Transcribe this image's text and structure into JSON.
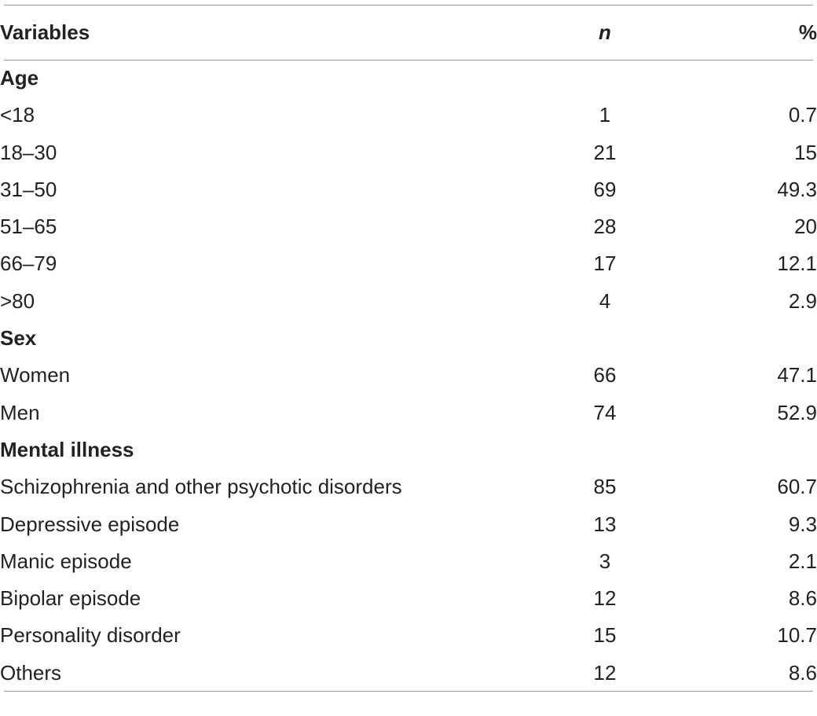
{
  "table": {
    "headers": {
      "variables": "Variables",
      "n": "n",
      "percent": "%"
    },
    "sections": [
      {
        "title": "Age",
        "rows": [
          {
            "label": "<18",
            "n": "1",
            "percent": "0.7"
          },
          {
            "label": "18–30",
            "n": "21",
            "percent": "15"
          },
          {
            "label": "31–50",
            "n": "69",
            "percent": "49.3"
          },
          {
            "label": "51–65",
            "n": "28",
            "percent": "20"
          },
          {
            "label": "66–79",
            "n": "17",
            "percent": "12.1"
          },
          {
            "label": ">80",
            "n": "4",
            "percent": "2.9"
          }
        ]
      },
      {
        "title": "Sex",
        "rows": [
          {
            "label": "Women",
            "n": "66",
            "percent": "47.1"
          },
          {
            "label": "Men",
            "n": "74",
            "percent": "52.9"
          }
        ]
      },
      {
        "title": "Mental illness",
        "rows": [
          {
            "label": "Schizophrenia and other psychotic disorders",
            "n": "85",
            "percent": "60.7"
          },
          {
            "label": "Depressive episode",
            "n": "13",
            "percent": "9.3"
          },
          {
            "label": "Manic episode",
            "n": "3",
            "percent": "2.1"
          },
          {
            "label": "Bipolar episode",
            "n": "12",
            "percent": "8.6"
          },
          {
            "label": "Personality disorder",
            "n": "15",
            "percent": "10.7"
          },
          {
            "label": "Others",
            "n": "12",
            "percent": "8.6"
          }
        ]
      }
    ]
  }
}
